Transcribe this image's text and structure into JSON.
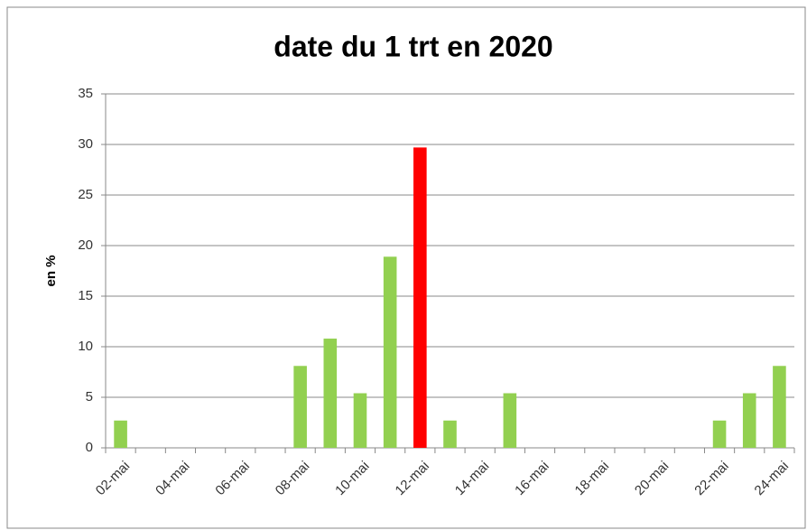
{
  "chart_data": {
    "type": "bar",
    "title": "date du 1 trt en 2020",
    "y_label": "en %",
    "categories": [
      "02-mai",
      null,
      "04-mai",
      null,
      "06-mai",
      null,
      "08-mai",
      null,
      "10-mai",
      null,
      "12-mai",
      null,
      "14-mai",
      null,
      "16-mai",
      null,
      "18-mai",
      null,
      "20-mai",
      null,
      "22-mai",
      null,
      "24-mai"
    ],
    "values": [
      2.7,
      0,
      0,
      0,
      0,
      0,
      8.1,
      10.8,
      5.4,
      18.9,
      29.7,
      2.7,
      0,
      5.4,
      0,
      0,
      0,
      0,
      0,
      0,
      2.7,
      5.4,
      8.1
    ],
    "colors": [
      "#92d050",
      "#92d050",
      "#92d050",
      "#92d050",
      "#92d050",
      "#92d050",
      "#92d050",
      "#92d050",
      "#92d050",
      "#92d050",
      "#ff0000",
      "#92d050",
      "#92d050",
      "#92d050",
      "#92d050",
      "#92d050",
      "#92d050",
      "#92d050",
      "#92d050",
      "#92d050",
      "#92d050",
      "#92d050",
      "#92d050"
    ],
    "ylim": [
      0,
      35
    ],
    "yticks": [
      0,
      5,
      10,
      15,
      20,
      25,
      30,
      35
    ],
    "grid": true
  }
}
